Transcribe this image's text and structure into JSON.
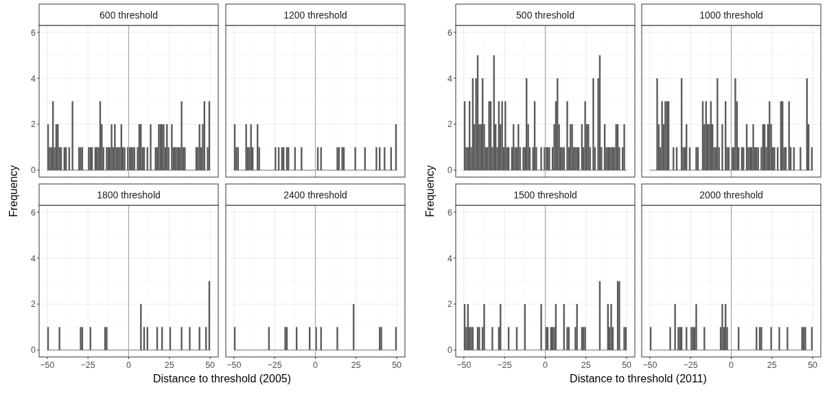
{
  "chart_data": [
    {
      "type": "histogram",
      "title": "600 threshold",
      "tick_labels": "y",
      "color": "#595959",
      "grid": true,
      "xlim": [
        -55,
        55
      ],
      "ylim": [
        -0.3,
        6.3
      ],
      "yticks": [
        0,
        2,
        4,
        6
      ],
      "ref_lines": [
        {
          "axis": "x",
          "value": 0,
          "color": "#a6a6a6"
        }
      ],
      "bins": [
        -50,
        -49,
        -48,
        -47,
        -46,
        -45,
        -44,
        -43,
        -42,
        -41,
        -40,
        -39,
        -38,
        -37,
        -36,
        -35,
        -34,
        -33,
        -32,
        -31,
        -30,
        -29,
        -28,
        -27,
        -26,
        -25,
        -24,
        -23,
        -22,
        -21,
        -20,
        -19,
        -18,
        -17,
        -16,
        -15,
        -14,
        -13,
        -12,
        -11,
        -10,
        -9,
        -8,
        -7,
        -6,
        -5,
        -4,
        -3,
        -2,
        -1,
        0,
        1,
        2,
        3,
        4,
        5,
        6,
        7,
        8,
        9,
        10,
        11,
        12,
        13,
        14,
        15,
        16,
        17,
        18,
        19,
        20,
        21,
        22,
        23,
        24,
        25,
        26,
        27,
        28,
        29,
        30,
        31,
        32,
        33,
        34,
        35,
        36,
        37,
        38,
        39,
        40,
        41,
        42,
        43,
        44,
        45,
        46,
        47,
        48,
        49,
        50
      ],
      "values": [
        2,
        1,
        1,
        3,
        1,
        2,
        2,
        1,
        1,
        0,
        1,
        1,
        0,
        1,
        0,
        3,
        0,
        0,
        0,
        1,
        1,
        1,
        0,
        0,
        0,
        1,
        1,
        1,
        0,
        1,
        1,
        1,
        3,
        2,
        1,
        0,
        1,
        1,
        1,
        2,
        1,
        2,
        1,
        1,
        1,
        2,
        1,
        1,
        0,
        1,
        1,
        1,
        1,
        1,
        0,
        1,
        2,
        2,
        1,
        1,
        0,
        1,
        0,
        2,
        0,
        0,
        1,
        1,
        2,
        2,
        2,
        2,
        1,
        2,
        1,
        0,
        2,
        1,
        1,
        1,
        1,
        1,
        3,
        1,
        1,
        0,
        0,
        0,
        0,
        0,
        0,
        1,
        1,
        2,
        1,
        2,
        3,
        0,
        1,
        3
      ]
    },
    {
      "type": "histogram",
      "title": "1200 threshold",
      "tick_labels": false,
      "color": "#595959",
      "grid": true,
      "xlim": [
        -55,
        55
      ],
      "ylim": [
        -0.3,
        6.3
      ],
      "ref_lines": [
        {
          "axis": "x",
          "value": 0,
          "color": "#a6a6a6"
        }
      ],
      "bins": [
        -50,
        -49,
        -48,
        -47,
        -46,
        -45,
        -44,
        -43,
        -42,
        -41,
        -40,
        -39,
        -38,
        -37,
        -36,
        -35,
        -34,
        -33,
        -32,
        -31,
        -30,
        -29,
        -28,
        -27,
        -26,
        -25,
        -24,
        -23,
        -22,
        -21,
        -20,
        -19,
        -18,
        -17,
        -16,
        -15,
        -14,
        -13,
        -12,
        -11,
        -10,
        -9,
        -8,
        -7,
        -6,
        -5,
        -4,
        -3,
        -2,
        -1,
        0,
        1,
        2,
        3,
        4,
        5,
        6,
        7,
        8,
        9,
        10,
        11,
        12,
        13,
        14,
        15,
        16,
        17,
        18,
        19,
        20,
        21,
        22,
        23,
        24,
        25,
        26,
        27,
        28,
        29,
        30,
        31,
        32,
        33,
        34,
        35,
        36,
        37,
        38,
        39,
        40,
        41,
        42,
        43,
        44,
        45,
        46,
        47,
        48,
        49,
        50
      ],
      "values": [
        2,
        1,
        1,
        0,
        0,
        0,
        0,
        2,
        1,
        1,
        2,
        1,
        0,
        0,
        2,
        1,
        0,
        0,
        0,
        0,
        0,
        0,
        0,
        0,
        0,
        1,
        0,
        1,
        0,
        1,
        1,
        0,
        1,
        1,
        0,
        0,
        0,
        1,
        0,
        0,
        0,
        1,
        0,
        0,
        0,
        0,
        0,
        0,
        0,
        0,
        0,
        1,
        0,
        1,
        0,
        0,
        0,
        0,
        0,
        0,
        0,
        0,
        0,
        1,
        1,
        0,
        1,
        1,
        0,
        0,
        0,
        0,
        0,
        0,
        1,
        0,
        0,
        0,
        0,
        0,
        1,
        0,
        0,
        0,
        0,
        0,
        0,
        1,
        0,
        1,
        0,
        0,
        1,
        0,
        0,
        0,
        1,
        0,
        0,
        2
      ]
    },
    {
      "type": "histogram",
      "title": "1800 threshold",
      "ylabel": "Frequency",
      "xlabel": "Distance to threshold (2005)",
      "color": "#595959",
      "grid": true,
      "xlim": [
        -55,
        55
      ],
      "ylim": [
        -0.3,
        6.3
      ],
      "xticks": [
        -50,
        -25,
        0,
        25,
        50
      ],
      "yticks": [
        0,
        2,
        4,
        6
      ],
      "ref_lines": [
        {
          "axis": "x",
          "value": 0,
          "color": "#a6a6a6"
        }
      ],
      "bins": [
        -50,
        -49,
        -48,
        -47,
        -46,
        -45,
        -44,
        -43,
        -42,
        -41,
        -40,
        -39,
        -38,
        -37,
        -36,
        -35,
        -34,
        -33,
        -32,
        -31,
        -30,
        -29,
        -28,
        -27,
        -26,
        -25,
        -24,
        -23,
        -22,
        -21,
        -20,
        -19,
        -18,
        -17,
        -16,
        -15,
        -14,
        -13,
        -12,
        -11,
        -10,
        -9,
        -8,
        -7,
        -6,
        -5,
        -4,
        -3,
        -2,
        -1,
        0,
        1,
        2,
        3,
        4,
        5,
        6,
        7,
        8,
        9,
        10,
        11,
        12,
        13,
        14,
        15,
        16,
        17,
        18,
        19,
        20,
        21,
        22,
        23,
        24,
        25,
        26,
        27,
        28,
        29,
        30,
        31,
        32,
        33,
        34,
        35,
        36,
        37,
        38,
        39,
        40,
        41,
        42,
        43,
        44,
        45,
        46,
        47,
        48,
        49,
        50
      ],
      "values": [
        1,
        0,
        0,
        0,
        0,
        0,
        0,
        1,
        0,
        0,
        0,
        0,
        0,
        0,
        0,
        0,
        0,
        0,
        0,
        0,
        1,
        1,
        0,
        0,
        0,
        0,
        1,
        0,
        0,
        0,
        0,
        0,
        0,
        0,
        0,
        1,
        1,
        0,
        0,
        0,
        0,
        0,
        0,
        0,
        0,
        0,
        0,
        0,
        0,
        0,
        0,
        0,
        0,
        0,
        0,
        0,
        0,
        2,
        0,
        1,
        0,
        1,
        0,
        0,
        0,
        0,
        0,
        1,
        0,
        0,
        1,
        0,
        0,
        0,
        0,
        1,
        0,
        0,
        0,
        0,
        0,
        0,
        1,
        0,
        0,
        0,
        0,
        1,
        0,
        0,
        0,
        0,
        0,
        1,
        0,
        0,
        0,
        1,
        0,
        3
      ]
    },
    {
      "type": "histogram",
      "title": "2400 threshold",
      "tick_labels": "x",
      "color": "#595959",
      "grid": true,
      "xlim": [
        -55,
        55
      ],
      "ylim": [
        -0.3,
        6.3
      ],
      "xticks": [
        -50,
        -25,
        0,
        25,
        50
      ],
      "ref_lines": [
        {
          "axis": "x",
          "value": 0,
          "color": "#a6a6a6"
        }
      ],
      "bins": [
        -50,
        -49,
        -48,
        -47,
        -46,
        -45,
        -44,
        -43,
        -42,
        -41,
        -40,
        -39,
        -38,
        -37,
        -36,
        -35,
        -34,
        -33,
        -32,
        -31,
        -30,
        -29,
        -28,
        -27,
        -26,
        -25,
        -24,
        -23,
        -22,
        -21,
        -20,
        -19,
        -18,
        -17,
        -16,
        -15,
        -14,
        -13,
        -12,
        -11,
        -10,
        -9,
        -8,
        -7,
        -6,
        -5,
        -4,
        -3,
        -2,
        -1,
        0,
        1,
        2,
        3,
        4,
        5,
        6,
        7,
        8,
        9,
        10,
        11,
        12,
        13,
        14,
        15,
        16,
        17,
        18,
        19,
        20,
        21,
        22,
        23,
        24,
        25,
        26,
        27,
        28,
        29,
        30,
        31,
        32,
        33,
        34,
        35,
        36,
        37,
        38,
        39,
        40,
        41,
        42,
        43,
        44,
        45,
        46,
        47,
        48,
        49,
        50
      ],
      "values": [
        1,
        0,
        0,
        0,
        0,
        0,
        0,
        0,
        0,
        0,
        0,
        0,
        0,
        0,
        0,
        0,
        0,
        0,
        0,
        0,
        0,
        1,
        0,
        0,
        0,
        0,
        0,
        0,
        0,
        0,
        0,
        1,
        1,
        0,
        0,
        0,
        0,
        0,
        1,
        0,
        0,
        0,
        0,
        0,
        0,
        0,
        1,
        0,
        0,
        0,
        1,
        0,
        0,
        1,
        0,
        0,
        0,
        0,
        0,
        0,
        0,
        0,
        0,
        1,
        0,
        0,
        0,
        0,
        0,
        0,
        0,
        0,
        0,
        2,
        0,
        0,
        0,
        0,
        0,
        0,
        0,
        0,
        0,
        0,
        0,
        0,
        0,
        0,
        0,
        1,
        1,
        0,
        0,
        0,
        0,
        0,
        0,
        0,
        0,
        1
      ]
    },
    {
      "type": "histogram",
      "title": "500 threshold",
      "tick_labels": "y",
      "color": "#595959",
      "grid": true,
      "xlim": [
        -55,
        55
      ],
      "ylim": [
        -0.3,
        6.3
      ],
      "yticks": [
        0,
        2,
        4,
        6
      ],
      "ref_lines": [
        {
          "axis": "x",
          "value": 0,
          "color": "#a6a6a6"
        }
      ],
      "bins": [
        -50,
        -49,
        -48,
        -47,
        -46,
        -45,
        -44,
        -43,
        -42,
        -41,
        -40,
        -39,
        -38,
        -37,
        -36,
        -35,
        -34,
        -33,
        -32,
        -31,
        -30,
        -29,
        -28,
        -27,
        -26,
        -25,
        -24,
        -23,
        -22,
        -21,
        -20,
        -19,
        -18,
        -17,
        -16,
        -15,
        -14,
        -13,
        -12,
        -11,
        -10,
        -9,
        -8,
        -7,
        -6,
        -5,
        -4,
        -3,
        -2,
        -1,
        0,
        1,
        2,
        3,
        4,
        5,
        6,
        7,
        8,
        9,
        10,
        11,
        12,
        13,
        14,
        15,
        16,
        17,
        18,
        19,
        20,
        21,
        22,
        23,
        24,
        25,
        26,
        27,
        28,
        29,
        30,
        31,
        32,
        33,
        34,
        35,
        36,
        37,
        38,
        39,
        40,
        41,
        42,
        43,
        44,
        45,
        46,
        47,
        48,
        49,
        50
      ],
      "values": [
        3,
        1,
        1,
        3,
        1,
        4,
        2,
        4,
        5,
        2,
        2,
        4,
        2,
        1,
        1,
        3,
        3,
        1,
        5,
        2,
        1,
        3,
        2,
        3,
        1,
        3,
        1,
        1,
        0,
        1,
        2,
        1,
        1,
        2,
        1,
        0,
        1,
        1,
        4,
        2,
        1,
        0,
        1,
        3,
        1,
        0,
        0,
        1,
        0,
        1,
        1,
        1,
        1,
        0,
        1,
        2,
        3,
        4,
        2,
        1,
        1,
        1,
        0,
        3,
        1,
        2,
        2,
        1,
        1,
        1,
        1,
        0,
        2,
        1,
        3,
        2,
        2,
        1,
        0,
        4,
        1,
        0,
        4,
        5,
        1,
        0,
        2,
        1,
        1,
        1,
        1,
        1,
        1,
        2,
        2,
        1,
        0,
        1,
        2,
        0
      ]
    },
    {
      "type": "histogram",
      "title": "1000 threshold",
      "tick_labels": false,
      "color": "#595959",
      "grid": true,
      "xlim": [
        -55,
        55
      ],
      "ylim": [
        -0.3,
        6.3
      ],
      "ref_lines": [
        {
          "axis": "x",
          "value": 0,
          "color": "#a6a6a6"
        }
      ],
      "bins": [
        -50,
        -49,
        -48,
        -47,
        -46,
        -45,
        -44,
        -43,
        -42,
        -41,
        -40,
        -39,
        -38,
        -37,
        -36,
        -35,
        -34,
        -33,
        -32,
        -31,
        -30,
        -29,
        -28,
        -27,
        -26,
        -25,
        -24,
        -23,
        -22,
        -21,
        -20,
        -19,
        -18,
        -17,
        -16,
        -15,
        -14,
        -13,
        -12,
        -11,
        -10,
        -9,
        -8,
        -7,
        -6,
        -5,
        -4,
        -3,
        -2,
        -1,
        0,
        1,
        2,
        3,
        4,
        5,
        6,
        7,
        8,
        9,
        10,
        11,
        12,
        13,
        14,
        15,
        16,
        17,
        18,
        19,
        20,
        21,
        22,
        23,
        24,
        25,
        26,
        27,
        28,
        29,
        30,
        31,
        32,
        33,
        34,
        35,
        36,
        37,
        38,
        39,
        40,
        41,
        42,
        43,
        44,
        45,
        46,
        47,
        48,
        49,
        50
      ],
      "values": [
        0,
        0,
        0,
        0,
        4,
        2,
        1,
        3,
        2,
        3,
        3,
        3,
        0,
        0,
        1,
        0,
        1,
        0,
        0,
        4,
        1,
        1,
        2,
        0,
        1,
        0,
        0,
        0,
        1,
        1,
        0,
        0,
        3,
        2,
        3,
        2,
        2,
        3,
        2,
        1,
        1,
        4,
        1,
        0,
        2,
        0,
        3,
        1,
        1,
        0,
        1,
        1,
        4,
        3,
        1,
        0,
        1,
        1,
        0,
        2,
        1,
        1,
        1,
        2,
        1,
        1,
        1,
        0,
        1,
        2,
        2,
        1,
        2,
        3,
        2,
        1,
        1,
        0,
        1,
        0,
        3,
        3,
        1,
        1,
        0,
        3,
        1,
        0,
        1,
        0,
        0,
        0,
        1,
        0,
        0,
        0,
        4,
        2,
        0,
        1
      ]
    },
    {
      "type": "histogram",
      "title": "1500 threshold",
      "ylabel": "Frequency",
      "xlabel": "Distance to threshold (2011)",
      "color": "#595959",
      "grid": true,
      "xlim": [
        -55,
        55
      ],
      "ylim": [
        -0.3,
        6.3
      ],
      "xticks": [
        -50,
        -25,
        0,
        25,
        50
      ],
      "yticks": [
        0,
        2,
        4,
        6
      ],
      "ref_lines": [
        {
          "axis": "x",
          "value": 0,
          "color": "#a6a6a6"
        }
      ],
      "bins": [
        -50,
        -49,
        -48,
        -47,
        -46,
        -45,
        -44,
        -43,
        -42,
        -41,
        -40,
        -39,
        -38,
        -37,
        -36,
        -35,
        -34,
        -33,
        -32,
        -31,
        -30,
        -29,
        -28,
        -27,
        -26,
        -25,
        -24,
        -23,
        -22,
        -21,
        -20,
        -19,
        -18,
        -17,
        -16,
        -15,
        -14,
        -13,
        -12,
        -11,
        -10,
        -9,
        -8,
        -7,
        -6,
        -5,
        -4,
        -3,
        -2,
        -1,
        0,
        1,
        2,
        3,
        4,
        5,
        6,
        7,
        8,
        9,
        10,
        11,
        12,
        13,
        14,
        15,
        16,
        17,
        18,
        19,
        20,
        21,
        22,
        23,
        24,
        25,
        26,
        27,
        28,
        29,
        30,
        31,
        32,
        33,
        34,
        35,
        36,
        37,
        38,
        39,
        40,
        41,
        42,
        43,
        44,
        45,
        46,
        47,
        48,
        49,
        50
      ],
      "values": [
        2,
        1,
        2,
        1,
        1,
        1,
        0,
        0,
        1,
        1,
        0,
        1,
        2,
        0,
        0,
        0,
        0,
        1,
        0,
        0,
        0,
        1,
        2,
        0,
        0,
        0,
        0,
        1,
        0,
        0,
        0,
        0,
        1,
        0,
        0,
        0,
        0,
        2,
        0,
        0,
        0,
        0,
        0,
        0,
        0,
        0,
        0,
        2,
        0,
        0,
        1,
        1,
        0,
        1,
        1,
        1,
        2,
        0,
        0,
        0,
        0,
        2,
        0,
        1,
        1,
        0,
        0,
        0,
        1,
        2,
        0,
        0,
        1,
        1,
        1,
        0,
        0,
        0,
        0,
        0,
        0,
        0,
        0,
        3,
        0,
        0,
        0,
        0,
        2,
        1,
        2,
        1,
        0,
        0,
        3,
        3,
        0,
        0,
        1,
        1
      ]
    },
    {
      "type": "histogram",
      "title": "2000 threshold",
      "tick_labels": "x",
      "color": "#595959",
      "grid": true,
      "xlim": [
        -55,
        55
      ],
      "ylim": [
        -0.3,
        6.3
      ],
      "xticks": [
        -50,
        -25,
        0,
        25,
        50
      ],
      "ref_lines": [
        {
          "axis": "x",
          "value": 0,
          "color": "#a6a6a6"
        }
      ],
      "bins": [
        -50,
        -49,
        -48,
        -47,
        -46,
        -45,
        -44,
        -43,
        -42,
        -41,
        -40,
        -39,
        -38,
        -37,
        -36,
        -35,
        -34,
        -33,
        -32,
        -31,
        -30,
        -29,
        -28,
        -27,
        -26,
        -25,
        -24,
        -23,
        -22,
        -21,
        -20,
        -19,
        -18,
        -17,
        -16,
        -15,
        -14,
        -13,
        -12,
        -11,
        -10,
        -9,
        -8,
        -7,
        -6,
        -5,
        -4,
        -3,
        -2,
        -1,
        0,
        1,
        2,
        3,
        4,
        5,
        6,
        7,
        8,
        9,
        10,
        11,
        12,
        13,
        14,
        15,
        16,
        17,
        18,
        19,
        20,
        21,
        22,
        23,
        24,
        25,
        26,
        27,
        28,
        29,
        30,
        31,
        32,
        33,
        34,
        35,
        36,
        37,
        38,
        39,
        40,
        41,
        42,
        43,
        44,
        45,
        46,
        47,
        48,
        49,
        50
      ],
      "values": [
        1,
        0,
        0,
        0,
        0,
        0,
        0,
        0,
        0,
        0,
        0,
        0,
        1,
        0,
        0,
        2,
        0,
        1,
        1,
        1,
        0,
        0,
        1,
        0,
        0,
        1,
        1,
        1,
        2,
        0,
        0,
        0,
        0,
        1,
        0,
        0,
        0,
        0,
        0,
        0,
        0,
        0,
        0,
        1,
        2,
        1,
        2,
        1,
        0,
        0,
        0,
        0,
        0,
        0,
        1,
        0,
        0,
        0,
        0,
        0,
        0,
        0,
        0,
        0,
        0,
        1,
        0,
        1,
        1,
        0,
        0,
        0,
        0,
        0,
        1,
        0,
        0,
        0,
        0,
        1,
        0,
        0,
        0,
        0,
        1,
        0,
        0,
        0,
        0,
        0,
        0,
        0,
        0,
        1,
        1,
        1,
        0,
        0,
        0,
        1
      ]
    }
  ]
}
